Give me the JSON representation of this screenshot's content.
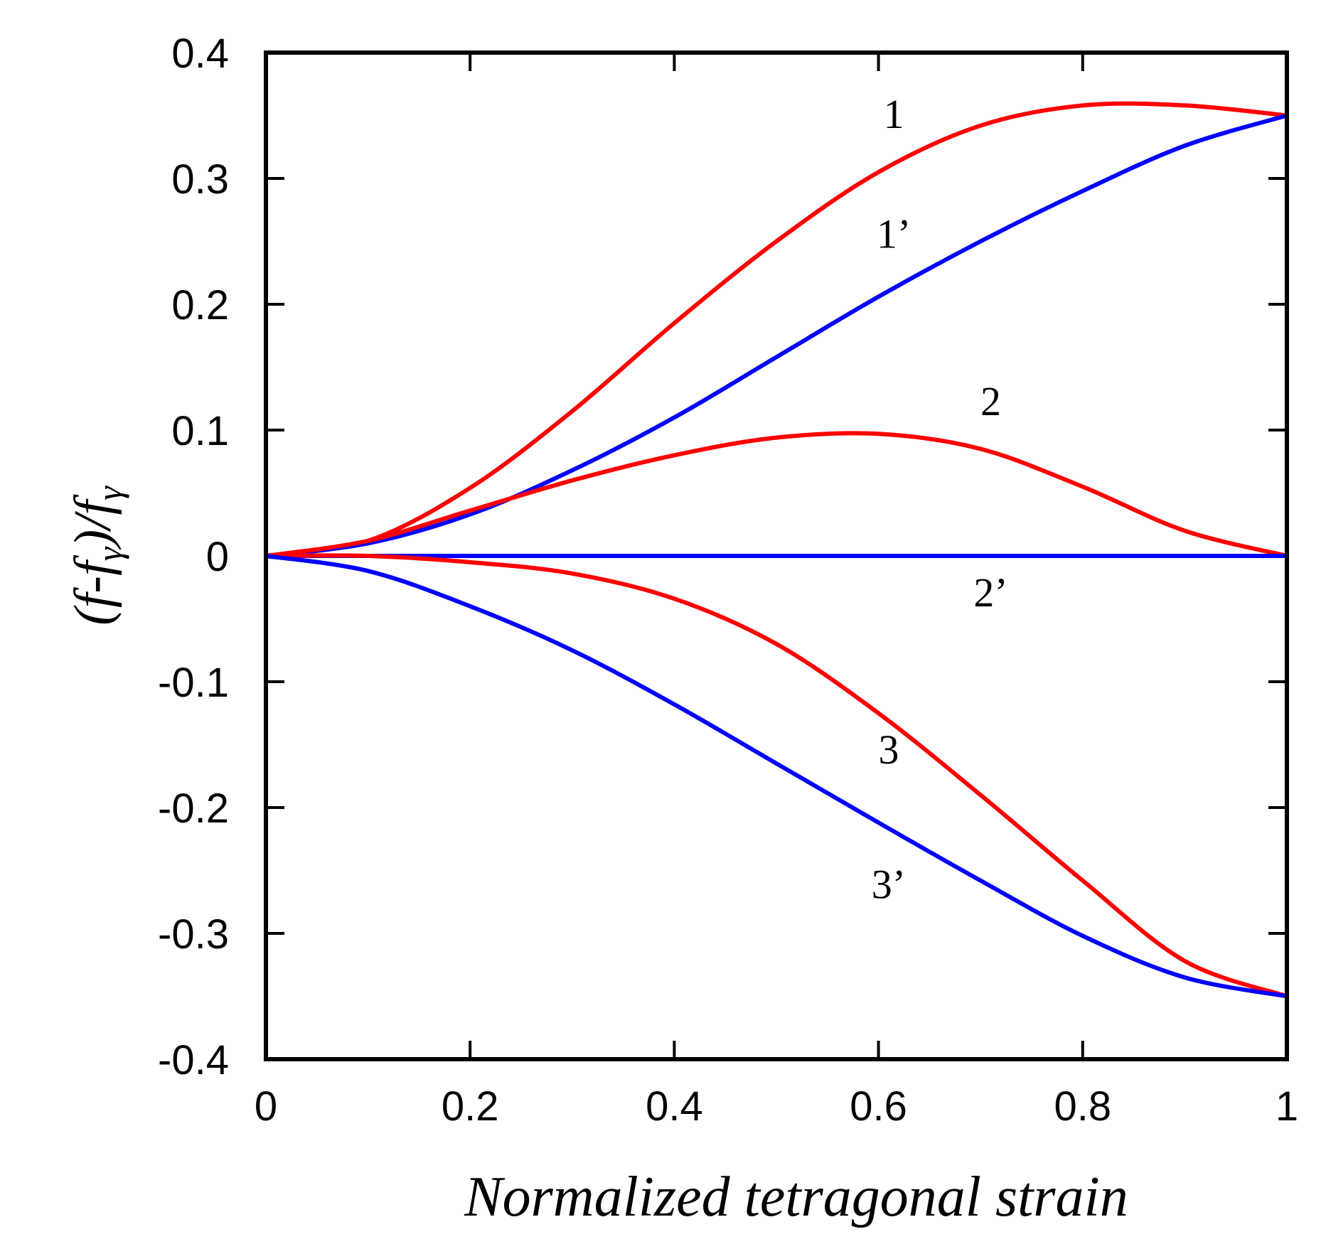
{
  "chart_data": {
    "type": "line",
    "title": "",
    "xlabel": "Normalized tetragonal strain",
    "ylabel": "(f-fγ)/fγ",
    "ylabel_parts": {
      "open": "(",
      "f1": "f",
      "dash": "-",
      "f2": "f",
      "sub1": "γ",
      "close": ")/",
      "f3": "f",
      "sub2": "γ"
    },
    "xlim": [
      0,
      1
    ],
    "ylim": [
      -0.4,
      0.4
    ],
    "xticks": [
      0,
      0.2,
      0.4,
      0.6,
      0.8,
      1
    ],
    "xtick_labels": [
      "0",
      "0.2",
      "0.4",
      "0.6",
      "0.8",
      "1"
    ],
    "yticks": [
      0.4,
      0.3,
      0.2,
      0.1,
      0,
      -0.1,
      -0.2,
      -0.3,
      -0.4
    ],
    "ytick_labels": [
      "0.4",
      "0.3",
      "0.2",
      "0.1",
      "0",
      "-0.1",
      "-0.2",
      "-0.3",
      "-0.4"
    ],
    "grid": false,
    "series": [
      {
        "name": "1",
        "color": "#ff0000",
        "x": [
          0,
          0.1,
          0.2,
          0.3,
          0.4,
          0.5,
          0.6,
          0.7,
          0.8,
          0.9,
          1.0
        ],
        "values": [
          0,
          0.012,
          0.054,
          0.115,
          0.185,
          0.25,
          0.305,
          0.342,
          0.358,
          0.358,
          0.35
        ]
      },
      {
        "name": "1’",
        "color": "#0000ff",
        "x": [
          0,
          0.1,
          0.2,
          0.3,
          0.4,
          0.5,
          0.6,
          0.7,
          0.8,
          0.9,
          1.0
        ],
        "values": [
          0,
          0.01,
          0.033,
          0.068,
          0.11,
          0.158,
          0.206,
          0.25,
          0.29,
          0.326,
          0.35
        ]
      },
      {
        "name": "2",
        "color": "#ff0000",
        "x": [
          0,
          0.1,
          0.2,
          0.3,
          0.4,
          0.5,
          0.6,
          0.7,
          0.8,
          0.9,
          1.0
        ],
        "values": [
          0,
          0.012,
          0.036,
          0.06,
          0.08,
          0.094,
          0.097,
          0.085,
          0.055,
          0.02,
          0
        ]
      },
      {
        "name": "2’",
        "color": "#0000ff",
        "x": [
          0,
          0.1,
          0.2,
          0.3,
          0.4,
          0.5,
          0.6,
          0.7,
          0.8,
          0.9,
          1.0
        ],
        "values": [
          0,
          0,
          0,
          0,
          0,
          0,
          0,
          0,
          0,
          0,
          0
        ]
      },
      {
        "name": "3",
        "color": "#ff0000",
        "x": [
          0,
          0.1,
          0.2,
          0.3,
          0.4,
          0.5,
          0.6,
          0.7,
          0.8,
          0.9,
          1.0
        ],
        "values": [
          0,
          0,
          -0.005,
          -0.014,
          -0.034,
          -0.07,
          -0.125,
          -0.19,
          -0.258,
          -0.322,
          -0.35
        ]
      },
      {
        "name": "3’",
        "color": "#0000ff",
        "x": [
          0,
          0.1,
          0.2,
          0.3,
          0.4,
          0.5,
          0.6,
          0.7,
          0.8,
          0.9,
          1.0
        ],
        "values": [
          0,
          -0.012,
          -0.04,
          -0.075,
          -0.118,
          -0.165,
          -0.212,
          -0.258,
          -0.302,
          -0.335,
          -0.35
        ]
      }
    ],
    "annotations": [
      {
        "text": "1",
        "x": 0.615,
        "y": 0.34
      },
      {
        "text": "1’",
        "x": 0.615,
        "y": 0.245
      },
      {
        "text": "2",
        "x": 0.71,
        "y": 0.112
      },
      {
        "text": "2’",
        "x": 0.71,
        "y": -0.04
      },
      {
        "text": "3",
        "x": 0.61,
        "y": -0.165
      },
      {
        "text": "3’",
        "x": 0.61,
        "y": -0.272
      }
    ]
  }
}
